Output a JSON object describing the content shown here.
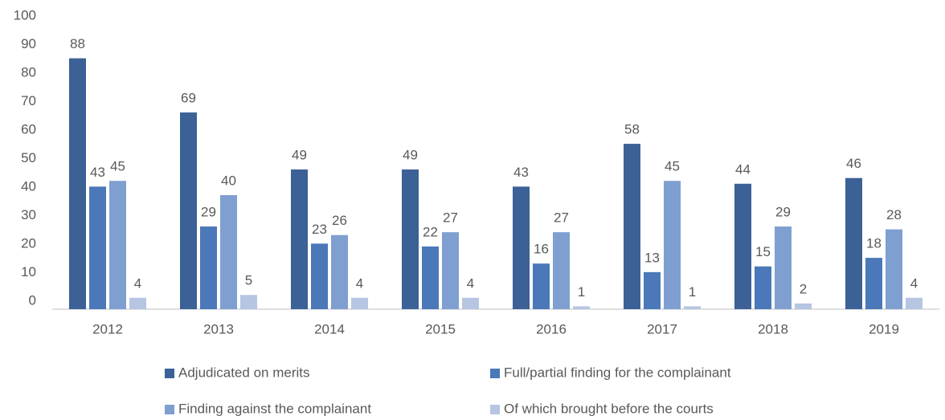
{
  "chart_data": {
    "type": "bar",
    "categories": [
      "2012",
      "2013",
      "2014",
      "2015",
      "2016",
      "2017",
      "2018",
      "2019"
    ],
    "series": [
      {
        "name": "Adjudicated on merits",
        "color": "#3b6196",
        "values": [
          88,
          69,
          49,
          49,
          43,
          58,
          44,
          46
        ]
      },
      {
        "name": "Full/partial finding for the complainant",
        "color": "#4a78b8",
        "values": [
          43,
          29,
          23,
          22,
          16,
          13,
          15,
          18
        ]
      },
      {
        "name": "Finding against the complainant",
        "color": "#7f9fd0",
        "values": [
          45,
          40,
          26,
          27,
          27,
          45,
          29,
          28
        ]
      },
      {
        "name": "Of which brought before the courts",
        "color": "#b6c5e2",
        "values": [
          4,
          5,
          4,
          4,
          1,
          1,
          2,
          4
        ]
      }
    ],
    "ylim": [
      0,
      100
    ],
    "yticks": [
      0,
      10,
      20,
      30,
      40,
      50,
      60,
      70,
      80,
      90,
      100
    ],
    "grid": false
  }
}
